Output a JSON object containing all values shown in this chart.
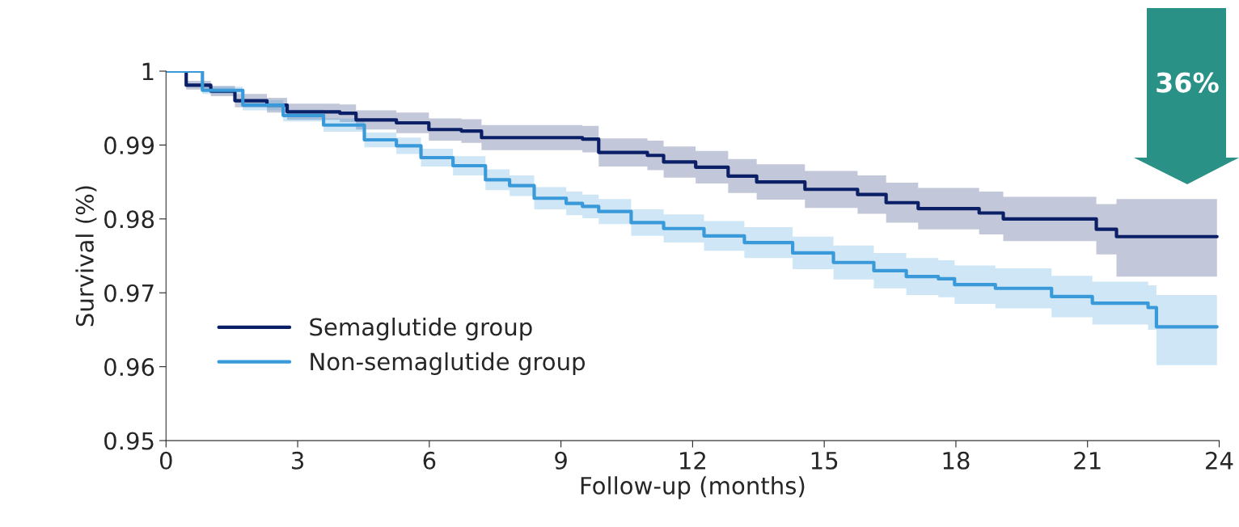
{
  "chart_data": {
    "type": "step",
    "xlabel": "Follow-up (months)",
    "ylabel": "Survival (%)",
    "xlim": [
      0,
      24
    ],
    "xticks": [
      0,
      3,
      6,
      9,
      12,
      15,
      18,
      21,
      24
    ],
    "ylim": [
      0.95,
      1
    ],
    "yticks": [
      0.95,
      0.96,
      0.97,
      0.98,
      0.99,
      1
    ],
    "grid": false,
    "legend": "bottom left",
    "marker": "none",
    "line_style": "solid",
    "annotations": [
      "36%"
    ],
    "series": [
      {
        "name": "Semaglutide group",
        "color": "#0b1f66",
        "x": [
          0,
          0.46,
          1.02,
          1.57,
          2.3,
          2.76,
          3.96,
          4.33,
          5.25,
          5.99,
          6.73,
          7.19,
          9.49,
          9.86,
          10.97,
          11.34,
          12.07,
          12.81,
          13.46,
          14.56,
          15.76,
          16.41,
          17.14,
          18.53,
          19.08,
          21.2,
          21.66,
          23.95
        ],
        "values": [
          1.0,
          0.9981,
          0.9973,
          0.996,
          0.9954,
          0.9945,
          0.9943,
          0.9934,
          0.993,
          0.9921,
          0.9919,
          0.991,
          0.9908,
          0.989,
          0.9886,
          0.9877,
          0.987,
          0.9858,
          0.985,
          0.984,
          0.9833,
          0.9822,
          0.9814,
          0.9808,
          0.98,
          0.9786,
          0.9776,
          0.9776
        ],
        "upper": [
          1.0,
          0.9987,
          0.998,
          0.9969,
          0.9964,
          0.9956,
          0.9955,
          0.9947,
          0.9944,
          0.9936,
          0.9935,
          0.9927,
          0.9926,
          0.9909,
          0.9906,
          0.9898,
          0.9892,
          0.9881,
          0.9874,
          0.9865,
          0.9859,
          0.9849,
          0.9842,
          0.9837,
          0.983,
          0.982,
          0.9827,
          0.9827
        ],
        "lower": [
          1.0,
          0.9975,
          0.9966,
          0.9951,
          0.9944,
          0.9934,
          0.9931,
          0.9921,
          0.9916,
          0.9906,
          0.9903,
          0.9893,
          0.989,
          0.9871,
          0.9866,
          0.9856,
          0.9848,
          0.9835,
          0.9826,
          0.9815,
          0.9807,
          0.9795,
          0.9786,
          0.9779,
          0.977,
          0.9752,
          0.9722,
          0.9722
        ]
      },
      {
        "name": "Non-semaglutide group",
        "color": "#3a9ad9",
        "x": [
          0,
          0.83,
          1.75,
          2.67,
          3.59,
          4.52,
          5.25,
          5.81,
          6.54,
          7.28,
          7.83,
          8.39,
          9.12,
          9.49,
          9.86,
          10.6,
          11.34,
          12.26,
          13.18,
          14.28,
          15.21,
          16.13,
          16.87,
          17.6,
          17.97,
          18.9,
          20.18,
          21.11,
          22.38,
          22.57,
          23.95
        ],
        "values": [
          1.0,
          0.9974,
          0.9954,
          0.994,
          0.9927,
          0.9907,
          0.9899,
          0.9883,
          0.9872,
          0.9853,
          0.9845,
          0.9828,
          0.9821,
          0.9817,
          0.981,
          0.9795,
          0.9787,
          0.9777,
          0.9768,
          0.9754,
          0.9741,
          0.973,
          0.9722,
          0.9719,
          0.9711,
          0.9706,
          0.9695,
          0.9686,
          0.968,
          0.9654,
          0.9654
        ],
        "upper": [
          1.0,
          0.9979,
          0.9961,
          0.9948,
          0.9936,
          0.9917,
          0.991,
          0.9895,
          0.9885,
          0.9867,
          0.9859,
          0.9843,
          0.9837,
          0.9833,
          0.9827,
          0.9813,
          0.9806,
          0.9797,
          0.9789,
          0.9776,
          0.9764,
          0.9754,
          0.9747,
          0.9744,
          0.9737,
          0.9733,
          0.9723,
          0.9715,
          0.971,
          0.9697,
          0.9697
        ],
        "lower": [
          1.0,
          0.9969,
          0.9947,
          0.9932,
          0.9918,
          0.9897,
          0.9888,
          0.9871,
          0.9859,
          0.9839,
          0.9831,
          0.9813,
          0.9805,
          0.9801,
          0.9793,
          0.9777,
          0.9768,
          0.9757,
          0.9747,
          0.9732,
          0.9718,
          0.9706,
          0.9697,
          0.9694,
          0.9685,
          0.9679,
          0.9667,
          0.9657,
          0.965,
          0.9602,
          0.9602
        ]
      }
    ]
  }
}
